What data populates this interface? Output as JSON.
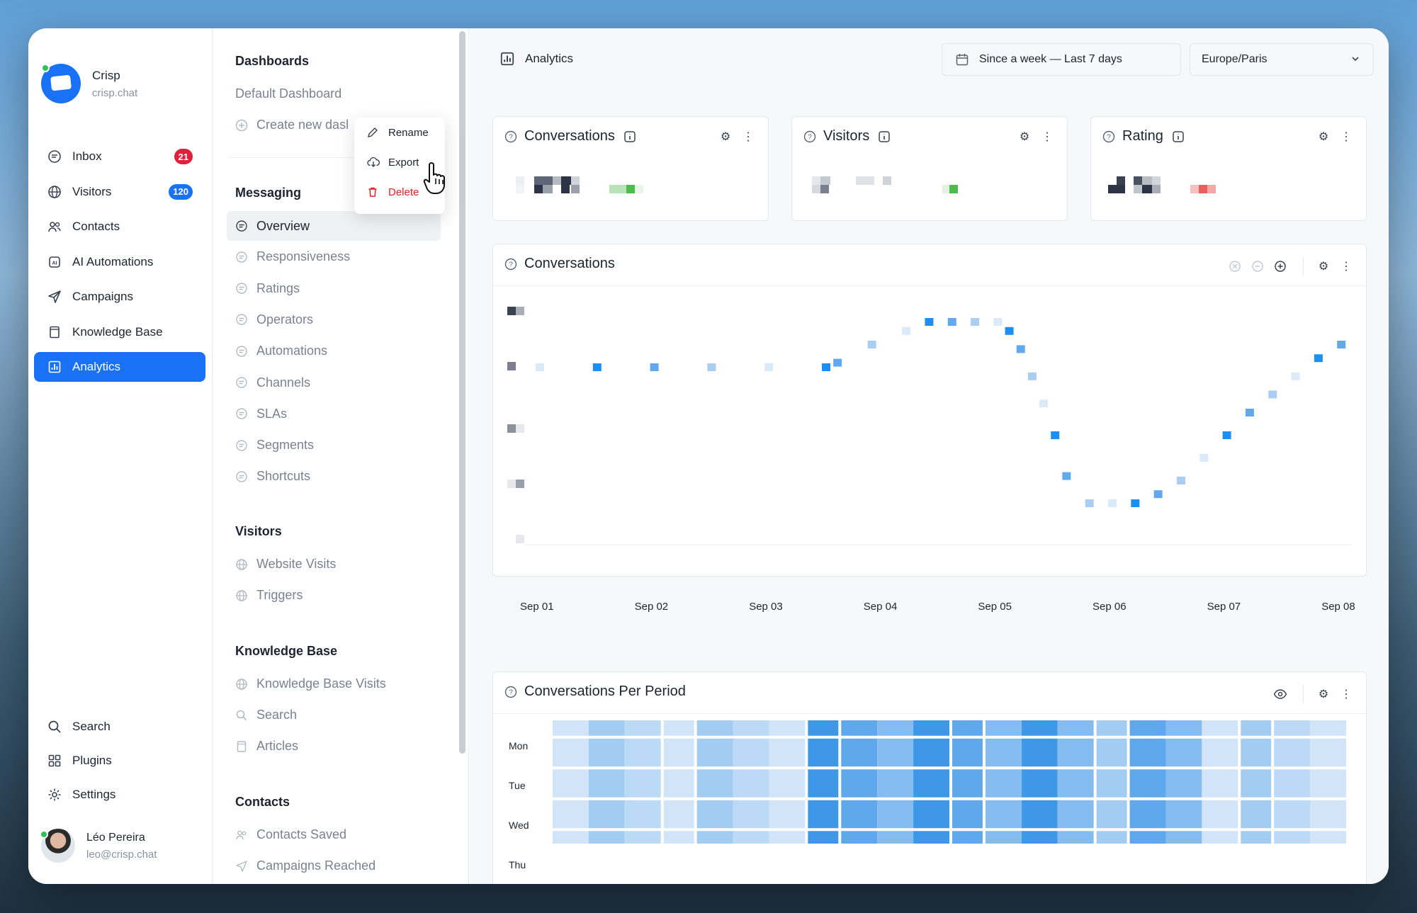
{
  "brand": {
    "name": "Crisp",
    "domain": "crisp.chat"
  },
  "nav": {
    "items": [
      {
        "label": "Inbox",
        "icon": "chat-icon",
        "badge": "21",
        "badge_color": "#e0203a"
      },
      {
        "label": "Visitors",
        "icon": "globe-icon",
        "badge": "120",
        "badge_color": "#1972f5"
      },
      {
        "label": "Contacts",
        "icon": "users-icon"
      },
      {
        "label": "AI Automations",
        "icon": "ai-chip-icon"
      },
      {
        "label": "Campaigns",
        "icon": "send-icon"
      },
      {
        "label": "Knowledge Base",
        "icon": "book-icon"
      },
      {
        "label": "Analytics",
        "icon": "analytics-icon",
        "active": true
      }
    ],
    "bottom": [
      {
        "label": "Search",
        "icon": "search-icon"
      },
      {
        "label": "Plugins",
        "icon": "plugins-icon"
      },
      {
        "label": "Settings",
        "icon": "gear-icon"
      }
    ]
  },
  "user": {
    "name": "Léo Pereira",
    "email": "leo@crisp.chat"
  },
  "submenu": {
    "dashboards_title": "Dashboards",
    "default_dashboard": "Default Dashboard",
    "create_new": "Create new dasl",
    "messaging_title": "Messaging",
    "messaging": [
      "Overview",
      "Responsiveness",
      "Ratings",
      "Operators",
      "Automations",
      "Channels",
      "SLAs",
      "Segments",
      "Shortcuts"
    ],
    "visitors_title": "Visitors",
    "visitors": [
      "Website Visits",
      "Triggers"
    ],
    "kb_title": "Knowledge Base",
    "kb": [
      "Knowledge Base Visits",
      "Search",
      "Articles"
    ],
    "contacts_title": "Contacts",
    "contacts": [
      "Contacts Saved",
      "Campaigns Reached"
    ]
  },
  "context_menu": {
    "rename": "Rename",
    "export": "Export",
    "delete": "Delete"
  },
  "topbar": {
    "title": "Analytics",
    "date_range": "Since a week — Last 7 days",
    "timezone": "Europe/Paris"
  },
  "cards": {
    "conversations": "Conversations",
    "visitors": "Visitors",
    "rating": "Rating"
  },
  "conversations_chart": {
    "title": "Conversations"
  },
  "period_chart": {
    "title": "Conversations Per Period"
  },
  "chart_data": [
    {
      "type": "line",
      "title": "Conversations",
      "categories": [
        "Sep 01",
        "Sep 02",
        "Sep 03",
        "Sep 04",
        "Sep 05",
        "Sep 06",
        "Sep 07",
        "Sep 08"
      ],
      "x": [
        0,
        0.5,
        1,
        1.5,
        2,
        2.5,
        2.6,
        2.9,
        3.2,
        3.4,
        3.6,
        3.8,
        4.0,
        4.1,
        4.2,
        4.3,
        4.4,
        4.5,
        4.6,
        4.8,
        5.0,
        5.2,
        5.4,
        5.6,
        5.8,
        6.0,
        6.2,
        6.4,
        6.6,
        6.8,
        7.0
      ],
      "series": [
        {
          "values": [
            6,
            6,
            6,
            6,
            6,
            6,
            6.1,
            6.5,
            6.8,
            7,
            7,
            7,
            7,
            6.8,
            6.4,
            5.8,
            5.2,
            4.5,
            3.6,
            3,
            3,
            3,
            3.2,
            3.5,
            4,
            4.5,
            5,
            5.4,
            5.8,
            6.2,
            6.5
          ],
          "color": "#1f8ef1"
        }
      ],
      "grid": false
    },
    {
      "type": "heatmap",
      "title": "Conversations Per Period",
      "rows": [
        "Mon",
        "Tue",
        "Wed",
        "Thu"
      ]
    }
  ]
}
